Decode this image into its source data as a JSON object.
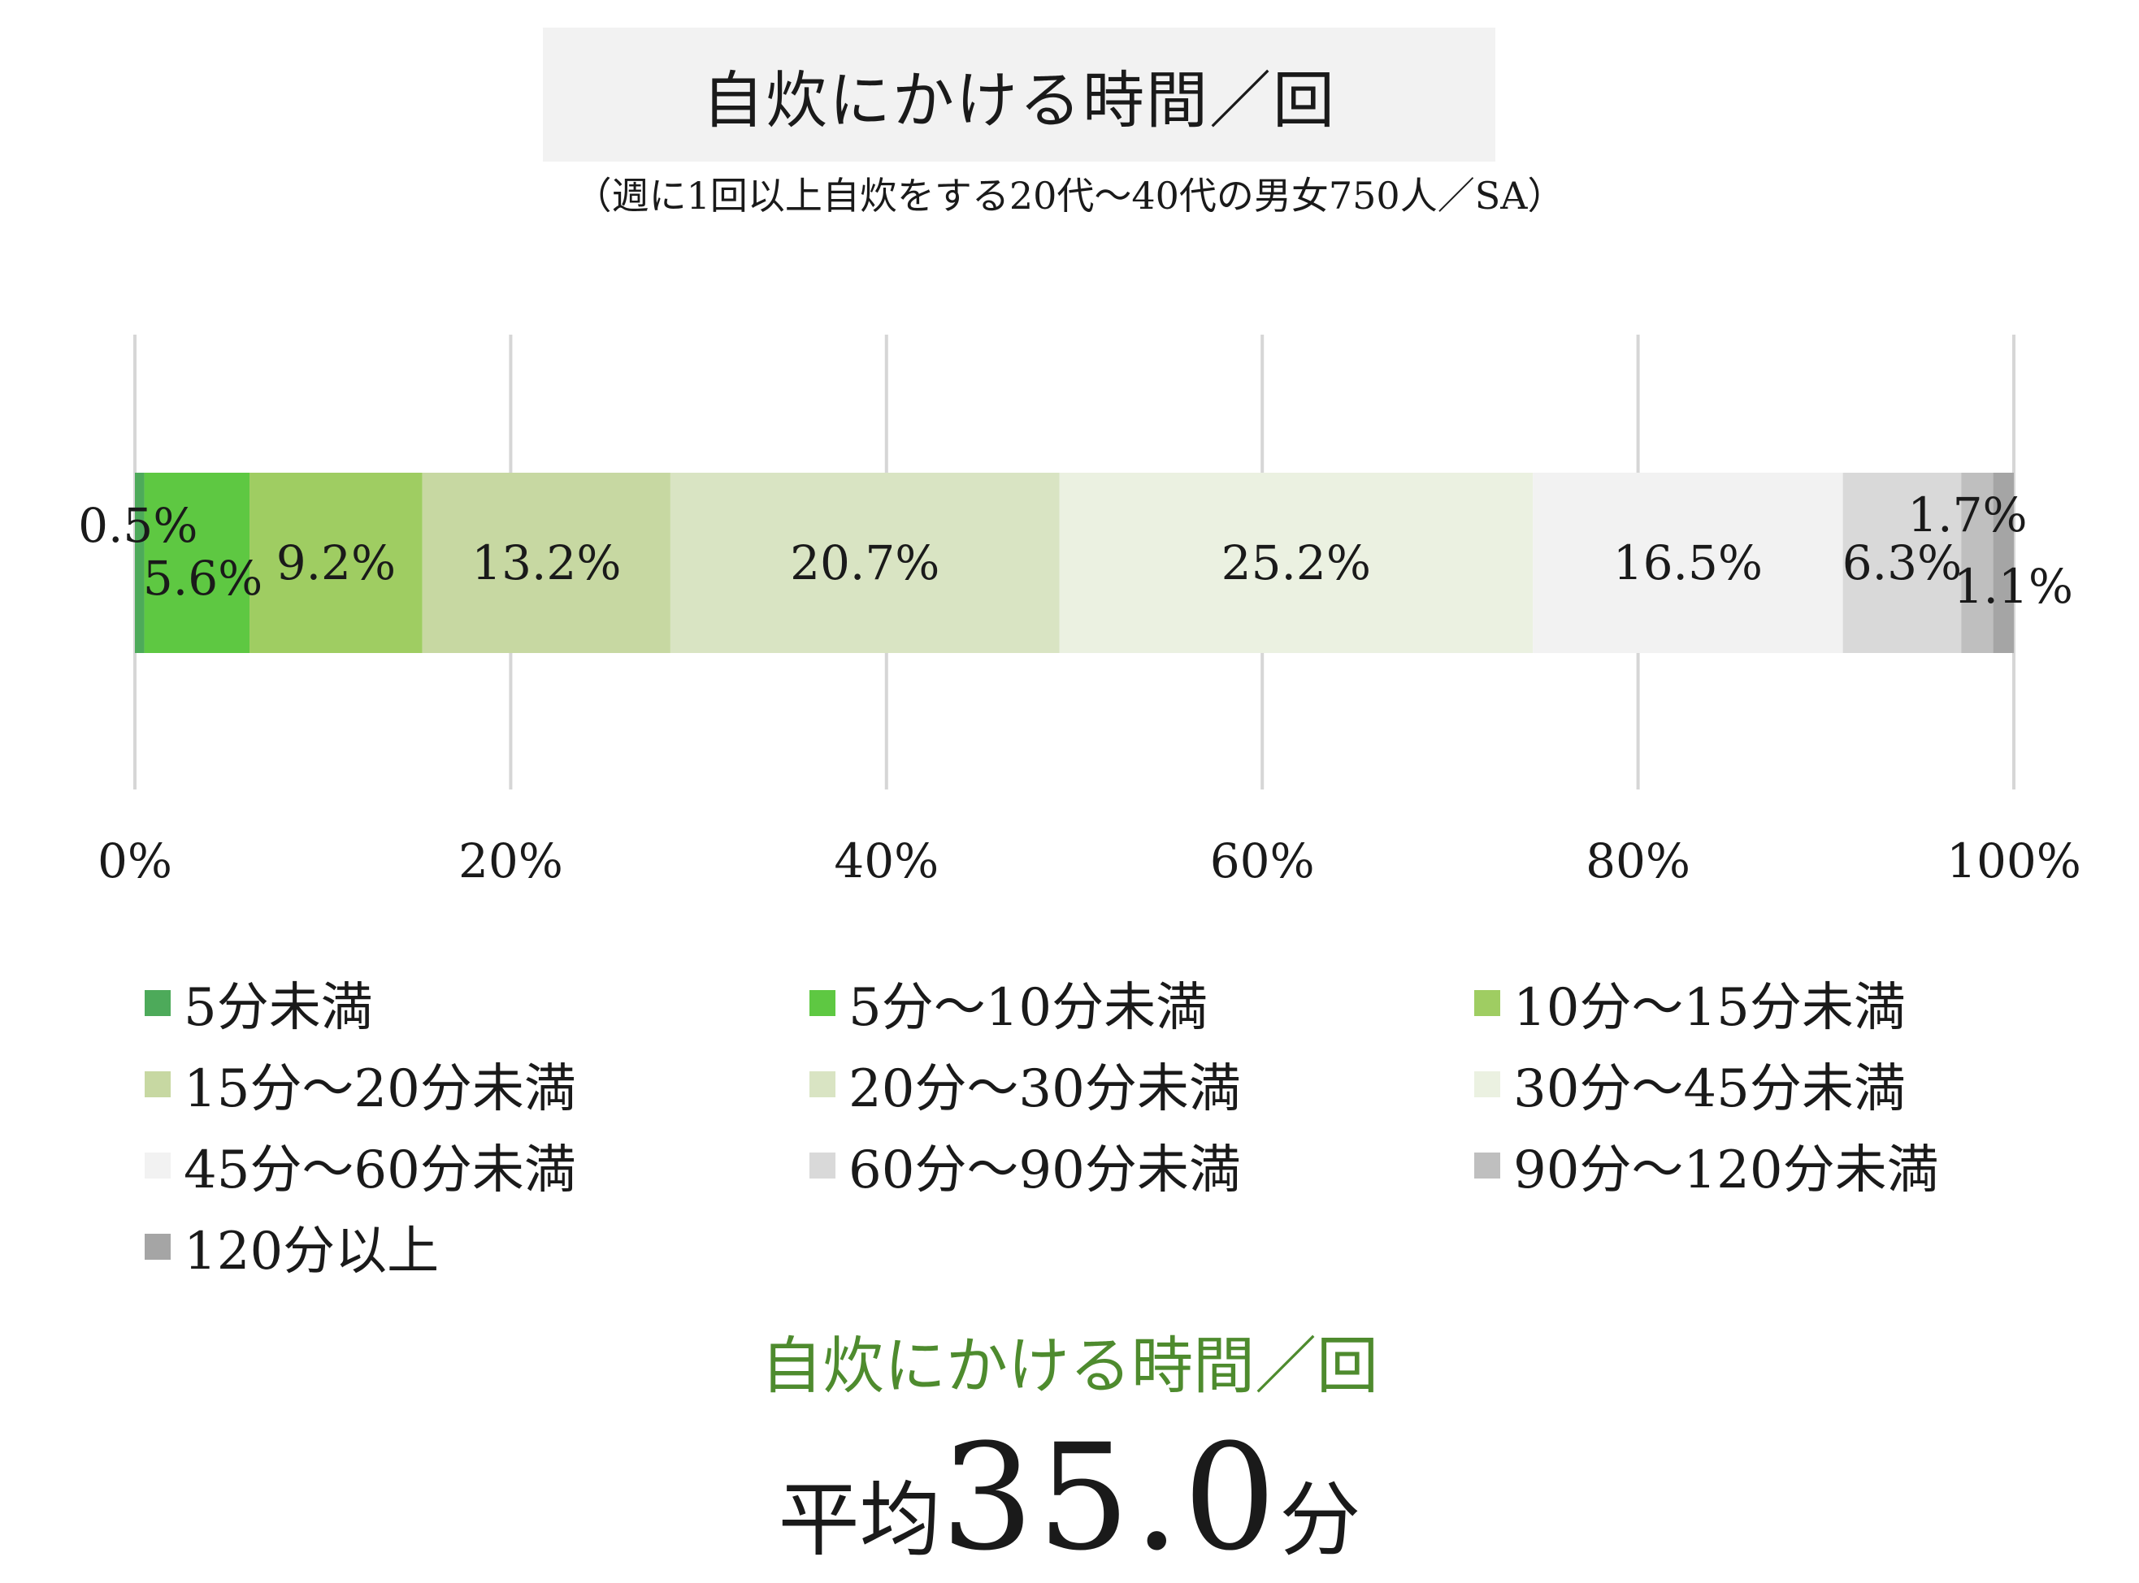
{
  "title": "自炊にかける時間／回",
  "subtitle": "（週に1回以上自炊をする20代～40代の男女750人／SA）",
  "chart_data": {
    "type": "bar",
    "orientation": "horizontal",
    "stacked": true,
    "normalized": true,
    "xlim": [
      0,
      100
    ],
    "ticks": [
      "0%",
      "20%",
      "40%",
      "60%",
      "80%",
      "100%"
    ],
    "grid": true,
    "legend_position": "bottom",
    "series": [
      {
        "name": "5分未満",
        "value": 0.5,
        "label": "0.5%",
        "color": "#4daa5a"
      },
      {
        "name": "5分～10分未満",
        "value": 5.6,
        "label": "5.6%",
        "color": "#5ec842"
      },
      {
        "name": "10分～15分未満",
        "value": 9.2,
        "label": "9.2%",
        "color": "#9fcd62"
      },
      {
        "name": "15分～20分未満",
        "value": 13.2,
        "label": "13.2%",
        "color": "#c7d8a2"
      },
      {
        "name": "20分～30分未満",
        "value": 20.7,
        "label": "20.7%",
        "color": "#d9e4c3"
      },
      {
        "name": "30分～45分未満",
        "value": 25.2,
        "label": "25.2%",
        "color": "#ebf1e1"
      },
      {
        "name": "45分～60分未満",
        "value": 16.5,
        "label": "16.5%",
        "color": "#f2f2f2"
      },
      {
        "name": "60分～90分未満",
        "value": 6.3,
        "label": "6.3%",
        "color": "#d9d9d9"
      },
      {
        "name": "90分～120分未満",
        "value": 1.7,
        "label": "1.7%",
        "color": "#bfbfbf"
      },
      {
        "name": "120分以上",
        "value": 1.1,
        "label": "1.1%",
        "color": "#a5a5a5"
      }
    ]
  },
  "summary": {
    "label": "自炊にかける時間／回",
    "prefix": "平均",
    "value": "35.0",
    "unit": "分"
  }
}
